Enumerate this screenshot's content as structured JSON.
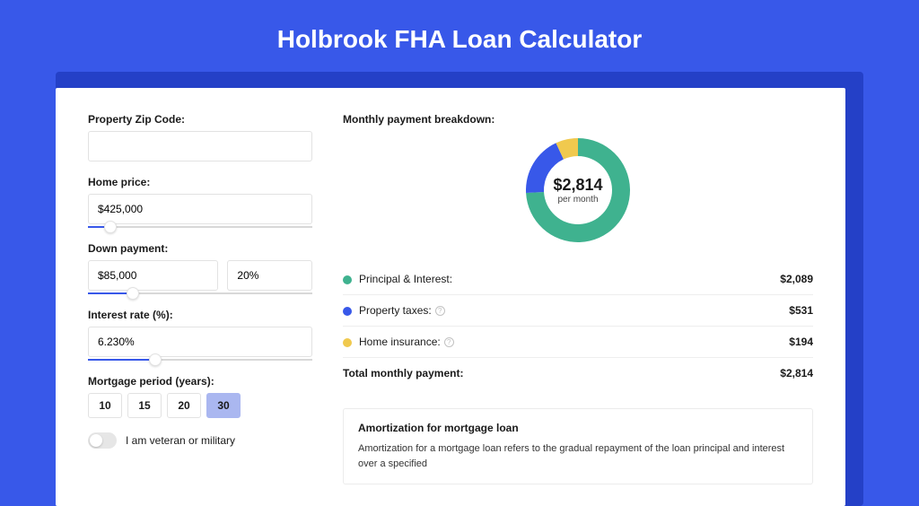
{
  "page": {
    "title": "Holbrook FHA Loan Calculator",
    "background_color": "#3858e9",
    "card_shadow_color": "#2440c7"
  },
  "form": {
    "zip": {
      "label": "Property Zip Code:",
      "value": ""
    },
    "home_price": {
      "label": "Home price:",
      "value": "$425,000",
      "slider_pct": 10
    },
    "down_payment": {
      "label": "Down payment:",
      "amount": "$85,000",
      "percent": "20%",
      "slider_pct": 20
    },
    "interest": {
      "label": "Interest rate (%):",
      "value": "6.230%",
      "slider_pct": 30
    },
    "period": {
      "label": "Mortgage period (years):",
      "options": [
        "10",
        "15",
        "20",
        "30"
      ],
      "selected": "30"
    },
    "veteran": {
      "label": "I am veteran or military",
      "checked": false
    }
  },
  "breakdown": {
    "title": "Monthly payment breakdown:",
    "donut": {
      "type": "donut",
      "center_value": "$2,814",
      "center_sub": "per month",
      "radius_outer": 58,
      "radius_inner": 38,
      "background_color": "#ffffff",
      "slices": [
        {
          "key": "pi",
          "value": 2089,
          "color": "#3fb28f",
          "start_deg": 0,
          "end_deg": 267
        },
        {
          "key": "tax",
          "value": 531,
          "color": "#3858e9",
          "start_deg": 267,
          "end_deg": 335
        },
        {
          "key": "ins",
          "value": 194,
          "color": "#f0c94e",
          "start_deg": 335,
          "end_deg": 360
        }
      ]
    },
    "rows": [
      {
        "label": "Principal & Interest:",
        "value": "$2,089",
        "color": "#3fb28f",
        "info": false
      },
      {
        "label": "Property taxes:",
        "value": "$531",
        "color": "#3858e9",
        "info": true
      },
      {
        "label": "Home insurance:",
        "value": "$194",
        "color": "#f0c94e",
        "info": true
      }
    ],
    "total": {
      "label": "Total monthly payment:",
      "value": "$2,814"
    }
  },
  "amortization": {
    "title": "Amortization for mortgage loan",
    "text": "Amortization for a mortgage loan refers to the gradual repayment of the loan principal and interest over a specified"
  }
}
